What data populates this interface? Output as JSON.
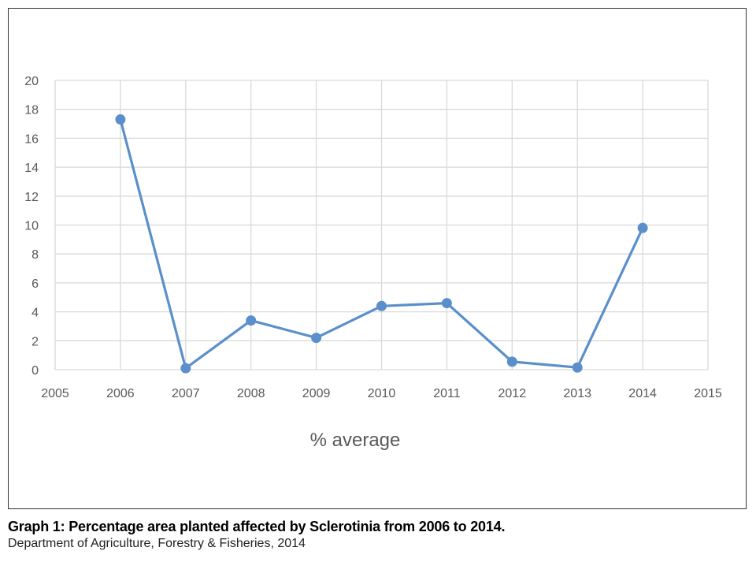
{
  "chart_data": {
    "type": "line",
    "xlabel": "% average",
    "ylabel": "",
    "xlim": [
      2005,
      2015
    ],
    "ylim": [
      0,
      20
    ],
    "x_ticks": [
      2005,
      2006,
      2007,
      2008,
      2009,
      2010,
      2011,
      2012,
      2013,
      2014,
      2015
    ],
    "y_ticks": [
      0,
      2,
      4,
      6,
      8,
      10,
      12,
      14,
      16,
      18,
      20
    ],
    "grid": true,
    "legend": "none",
    "series": [
      {
        "color": "#5b8fcb",
        "x": [
          2006,
          2007,
          2008,
          2009,
          2010,
          2011,
          2012,
          2013,
          2014
        ],
        "y": [
          17.3,
          0.1,
          3.4,
          2.2,
          4.4,
          4.6,
          0.55,
          0.15,
          9.8
        ]
      }
    ]
  },
  "caption": {
    "title": "Graph 1: Percentage area planted affected by Sclerotinia from 2006 to 2014.",
    "source": "Department of Agriculture, Forestry & Fisheries, 2014"
  }
}
